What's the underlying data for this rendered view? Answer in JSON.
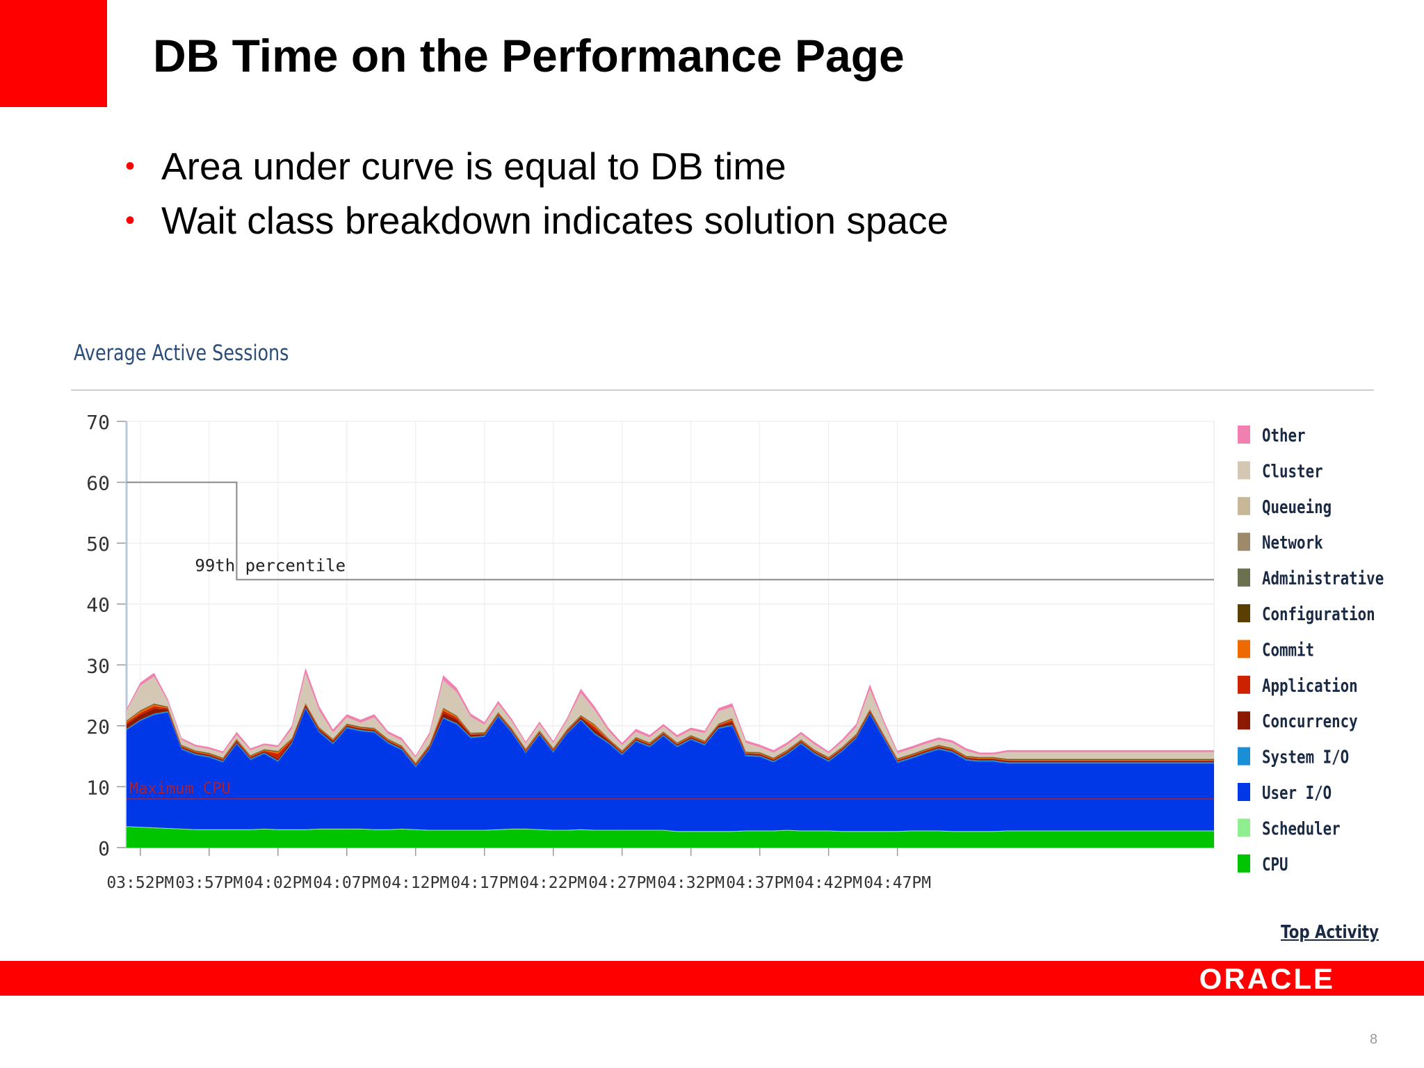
{
  "slide": {
    "title": "DB Time on the Performance Page",
    "bullets": [
      "Area under curve is equal to DB time",
      "Wait class breakdown indicates solution space"
    ],
    "bullet_marker": "•",
    "page_number": "8",
    "logo_text": "ORACLE",
    "brand_color": "#ff0000"
  },
  "chart_data": {
    "type": "area",
    "title": "Average Active Sessions",
    "xlabel": "",
    "ylabel": "",
    "ylim": [
      0,
      70
    ],
    "yticks": [
      0,
      10,
      20,
      30,
      40,
      50,
      60,
      70
    ],
    "xtick_labels": [
      "03:52PM",
      "03:57PM",
      "04:02PM",
      "04:07PM",
      "04:12PM",
      "04:17PM",
      "04:22PM",
      "04:27PM",
      "04:32PM",
      "04:37PM",
      "04:42PM",
      "04:47PM"
    ],
    "x_minutes_start": -1,
    "x_minutes_step": 1,
    "grid": true,
    "legend_position": "right",
    "stacked": true,
    "series": [
      {
        "name": "CPU",
        "color": "#00c400",
        "values": [
          3.4,
          3.3,
          3.2,
          3.1,
          3.0,
          2.9,
          2.9,
          2.9,
          2.9,
          2.9,
          3.0,
          2.9,
          2.9,
          2.9,
          3.0,
          3.0,
          3.0,
          3.0,
          2.9,
          2.9,
          3.0,
          2.9,
          2.8,
          2.8,
          2.8,
          2.8,
          2.8,
          2.9,
          3.0,
          3.0,
          2.9,
          2.8,
          2.8,
          2.9,
          2.8,
          2.8,
          2.8,
          2.8,
          2.8,
          2.8,
          2.6,
          2.6,
          2.6,
          2.6,
          2.6,
          2.7,
          2.7,
          2.7,
          2.8,
          2.7,
          2.7,
          2.7,
          2.6,
          2.6,
          2.6,
          2.6,
          2.6,
          2.7,
          2.7,
          2.7,
          2.6,
          2.6,
          2.6,
          2.6,
          2.7,
          2.7,
          2.7,
          2.7,
          2.7,
          2.7,
          2.7,
          2.7,
          2.7,
          2.7,
          2.7,
          2.7,
          2.7,
          2.7,
          2.7,
          2.7
        ]
      },
      {
        "name": "Scheduler",
        "color": "#90ee90",
        "values": [
          0.1,
          0.1,
          0.1,
          0.1,
          0.1,
          0.1,
          0.1,
          0.1,
          0.1,
          0.1,
          0.1,
          0.1,
          0.1,
          0.1,
          0.1,
          0.1,
          0.1,
          0.1,
          0.1,
          0.1,
          0.1,
          0.1,
          0.1,
          0.1,
          0.1,
          0.1,
          0.1,
          0.1,
          0.1,
          0.1,
          0.1,
          0.1,
          0.1,
          0.1,
          0.1,
          0.1,
          0.1,
          0.1,
          0.1,
          0.1,
          0.1,
          0.1,
          0.1,
          0.1,
          0.1,
          0.1,
          0.1,
          0.1,
          0.1,
          0.1,
          0.1,
          0.1,
          0.1,
          0.1,
          0.1,
          0.1,
          0.1,
          0.1,
          0.1,
          0.1,
          0.1,
          0.1,
          0.1,
          0.1,
          0.1,
          0.1,
          0.1,
          0.1,
          0.1,
          0.1,
          0.1,
          0.1,
          0.1,
          0.1,
          0.1,
          0.1,
          0.1,
          0.1,
          0.1,
          0.1
        ]
      },
      {
        "name": "User I/O",
        "color": "#0038e8",
        "values": [
          15.8,
          17.4,
          18.5,
          19.0,
          13.0,
          12.2,
          11.8,
          11.0,
          14.0,
          11.4,
          12.3,
          11.1,
          14.0,
          19.8,
          15.8,
          13.9,
          16.5,
          16.0,
          15.9,
          14.1,
          12.9,
          10.2,
          13.2,
          18.3,
          17.3,
          15.1,
          15.3,
          18.5,
          15.7,
          12.4,
          15.5,
          12.7,
          15.8,
          17.9,
          15.7,
          14.2,
          12.3,
          14.5,
          13.6,
          15.4,
          13.8,
          15.0,
          14.1,
          16.8,
          17.3,
          12.2,
          12.1,
          11.2,
          12.4,
          14.2,
          12.5,
          11.3,
          13.1,
          15.2,
          19.2,
          15.2,
          11.2,
          11.8,
          12.6,
          13.3,
          12.9,
          11.6,
          11.4,
          11.4,
          11.0,
          11.0,
          11.0,
          11.0,
          11.0,
          11.0,
          11.0,
          11.0,
          11.0,
          11.0,
          11.0,
          11.0,
          11.0,
          11.0,
          11.0,
          11.0
        ]
      },
      {
        "name": "System I/O",
        "color": "#1a8fd6",
        "values": [
          0.2,
          0.2,
          0.2,
          0.2,
          0.2,
          0.2,
          0.2,
          0.2,
          0.2,
          0.2,
          0.2,
          0.2,
          0.2,
          0.2,
          0.2,
          0.2,
          0.2,
          0.2,
          0.2,
          0.2,
          0.2,
          0.2,
          0.2,
          0.2,
          0.2,
          0.2,
          0.2,
          0.2,
          0.2,
          0.2,
          0.2,
          0.2,
          0.2,
          0.2,
          0.2,
          0.2,
          0.2,
          0.2,
          0.2,
          0.2,
          0.2,
          0.2,
          0.2,
          0.2,
          0.2,
          0.2,
          0.2,
          0.2,
          0.2,
          0.2,
          0.2,
          0.2,
          0.2,
          0.2,
          0.2,
          0.2,
          0.2,
          0.2,
          0.2,
          0.2,
          0.2,
          0.2,
          0.2,
          0.2,
          0.2,
          0.2,
          0.2,
          0.2,
          0.2,
          0.2,
          0.2,
          0.2,
          0.2,
          0.2,
          0.2,
          0.2,
          0.2,
          0.2,
          0.2,
          0.2
        ]
      },
      {
        "name": "Concurrency",
        "color": "#8b1a00",
        "values": [
          0.7,
          0.8,
          0.8,
          0.3,
          0.2,
          0.2,
          0.2,
          0.2,
          0.3,
          0.2,
          0.2,
          0.3,
          0.4,
          0.4,
          0.3,
          0.3,
          0.2,
          0.2,
          0.2,
          0.2,
          0.2,
          0.2,
          0.3,
          0.7,
          0.6,
          0.3,
          0.2,
          0.2,
          0.2,
          0.2,
          0.2,
          0.2,
          0.2,
          0.3,
          0.6,
          0.3,
          0.2,
          0.2,
          0.2,
          0.2,
          0.2,
          0.2,
          0.2,
          0.3,
          0.4,
          0.2,
          0.2,
          0.2,
          0.2,
          0.2,
          0.2,
          0.2,
          0.2,
          0.2,
          0.3,
          0.2,
          0.2,
          0.2,
          0.2,
          0.2,
          0.2,
          0.2,
          0.2,
          0.2,
          0.2,
          0.2,
          0.2,
          0.2,
          0.2,
          0.2,
          0.2,
          0.2,
          0.2,
          0.2,
          0.2,
          0.2,
          0.2,
          0.2,
          0.2,
          0.2
        ]
      },
      {
        "name": "Application",
        "color": "#cc2200",
        "values": [
          0.3,
          0.3,
          0.4,
          0.2,
          0.1,
          0.1,
          0.1,
          0.1,
          0.1,
          0.1,
          0.1,
          0.8,
          0.1,
          0.1,
          0.1,
          0.1,
          0.1,
          0.1,
          0.1,
          0.1,
          0.1,
          0.1,
          0.1,
          0.4,
          0.3,
          0.1,
          0.1,
          0.1,
          0.1,
          0.1,
          0.1,
          0.1,
          0.1,
          0.1,
          0.4,
          0.1,
          0.1,
          0.1,
          0.1,
          0.1,
          0.1,
          0.1,
          0.1,
          0.1,
          0.3,
          0.1,
          0.1,
          0.1,
          0.1,
          0.1,
          0.1,
          0.1,
          0.1,
          0.1,
          0.1,
          0.1,
          0.1,
          0.1,
          0.1,
          0.1,
          0.1,
          0.1,
          0.1,
          0.1,
          0.1,
          0.1,
          0.1,
          0.1,
          0.1,
          0.1,
          0.1,
          0.1,
          0.1,
          0.1,
          0.1,
          0.1,
          0.1,
          0.1,
          0.1,
          0.1
        ]
      },
      {
        "name": "Commit",
        "color": "#ee6a00",
        "values": [
          0.2,
          0.3,
          0.3,
          0.1,
          0.1,
          0.1,
          0.1,
          0.1,
          0.1,
          0.1,
          0.1,
          0.3,
          0.1,
          0.1,
          0.1,
          0.1,
          0.1,
          0.1,
          0.1,
          0.1,
          0.1,
          0.1,
          0.1,
          0.3,
          0.2,
          0.1,
          0.1,
          0.1,
          0.1,
          0.1,
          0.1,
          0.1,
          0.1,
          0.1,
          0.3,
          0.1,
          0.1,
          0.1,
          0.1,
          0.1,
          0.1,
          0.1,
          0.1,
          0.1,
          0.2,
          0.1,
          0.1,
          0.1,
          0.1,
          0.1,
          0.1,
          0.1,
          0.1,
          0.1,
          0.1,
          0.1,
          0.1,
          0.1,
          0.1,
          0.1,
          0.1,
          0.1,
          0.1,
          0.1,
          0.1,
          0.1,
          0.1,
          0.1,
          0.1,
          0.1,
          0.1,
          0.1,
          0.1,
          0.1,
          0.1,
          0.1,
          0.1,
          0.1,
          0.1,
          0.1
        ]
      },
      {
        "name": "Configuration",
        "color": "#5a4000",
        "values": [
          0.1,
          0.1,
          0.1,
          0.1,
          0.1,
          0.1,
          0.1,
          0.1,
          0.1,
          0.1,
          0.1,
          0.1,
          0.1,
          0.1,
          0.1,
          0.1,
          0.1,
          0.1,
          0.1,
          0.1,
          0.1,
          0.1,
          0.1,
          0.1,
          0.1,
          0.1,
          0.1,
          0.1,
          0.1,
          0.1,
          0.1,
          0.1,
          0.1,
          0.1,
          0.1,
          0.1,
          0.1,
          0.1,
          0.1,
          0.1,
          0.1,
          0.1,
          0.1,
          0.1,
          0.1,
          0.1,
          0.1,
          0.1,
          0.1,
          0.1,
          0.1,
          0.1,
          0.1,
          0.1,
          0.1,
          0.1,
          0.1,
          0.1,
          0.1,
          0.1,
          0.1,
          0.1,
          0.1,
          0.1,
          0.1,
          0.1,
          0.1,
          0.1,
          0.1,
          0.1,
          0.1,
          0.1,
          0.1,
          0.1,
          0.1,
          0.1,
          0.1,
          0.1,
          0.1,
          0.1
        ]
      },
      {
        "name": "Administrative",
        "color": "#6b7050",
        "values": [
          0,
          0,
          0,
          0,
          0,
          0,
          0,
          0,
          0,
          0,
          0,
          0,
          0,
          0,
          0,
          0,
          0,
          0,
          0,
          0,
          0,
          0,
          0,
          0,
          0,
          0,
          0,
          0,
          0,
          0,
          0,
          0,
          0,
          0,
          0,
          0,
          0,
          0,
          0,
          0,
          0,
          0,
          0,
          0,
          0,
          0,
          0,
          0,
          0,
          0,
          0,
          0,
          0,
          0,
          0,
          0,
          0,
          0,
          0,
          0,
          0,
          0,
          0,
          0,
          0,
          0,
          0,
          0,
          0,
          0,
          0,
          0,
          0,
          0,
          0,
          0,
          0,
          0,
          0,
          0
        ]
      },
      {
        "name": "Network",
        "color": "#9c8a6a",
        "values": [
          0.1,
          0.1,
          0.1,
          0.1,
          0.1,
          0.1,
          0.1,
          0.1,
          0.1,
          0.1,
          0.1,
          0.1,
          0.1,
          0.1,
          0.1,
          0.1,
          0.1,
          0.1,
          0.1,
          0.1,
          0.1,
          0.1,
          0.1,
          0.1,
          0.1,
          0.1,
          0.1,
          0.1,
          0.1,
          0.1,
          0.1,
          0.1,
          0.1,
          0.1,
          0.1,
          0.1,
          0.1,
          0.1,
          0.1,
          0.1,
          0.1,
          0.1,
          0.1,
          0.1,
          0.1,
          0.1,
          0.1,
          0.1,
          0.1,
          0.1,
          0.1,
          0.1,
          0.1,
          0.1,
          0.1,
          0.1,
          0.1,
          0.1,
          0.1,
          0.1,
          0.1,
          0.1,
          0.1,
          0.1,
          0.1,
          0.1,
          0.1,
          0.1,
          0.1,
          0.1,
          0.1,
          0.1,
          0.1,
          0.1,
          0.1,
          0.1,
          0.1,
          0.1,
          0.1,
          0.1
        ]
      },
      {
        "name": "Queueing",
        "color": "#c8b89a",
        "values": [
          0,
          0,
          0,
          0,
          0,
          0,
          0,
          0,
          0,
          0,
          0,
          0,
          0,
          0,
          0,
          0,
          0,
          0,
          0,
          0,
          0,
          0,
          0,
          0,
          0,
          0,
          0,
          0,
          0,
          0,
          0,
          0,
          0,
          0,
          0,
          0,
          0,
          0,
          0,
          0,
          0,
          0,
          0,
          0,
          0,
          0,
          0,
          0,
          0,
          0,
          0,
          0,
          0,
          0,
          0,
          0,
          0,
          0,
          0,
          0,
          0,
          0,
          0,
          0,
          0,
          0,
          0,
          0,
          0,
          0,
          0,
          0,
          0,
          0,
          0,
          0,
          0,
          0,
          0,
          0
        ]
      },
      {
        "name": "Cluster",
        "color": "#d4c8b4",
        "values": [
          1.6,
          4.0,
          4.4,
          0.8,
          0.8,
          0.6,
          0.6,
          0.7,
          0.6,
          0.8,
          0.6,
          0.6,
          1.5,
          4.8,
          2.7,
          1.0,
          1.0,
          0.6,
          1.7,
          0.8,
          0.8,
          0.8,
          1.5,
          4.5,
          3.8,
          2.6,
          1.2,
          1.3,
          1.1,
          0.8,
          1.0,
          0.8,
          1.4,
          3.6,
          2.3,
          1.2,
          0.8,
          0.8,
          0.8,
          0.8,
          0.8,
          0.8,
          1.2,
          2.0,
          1.8,
          1.4,
          0.8,
          0.8,
          0.8,
          0.8,
          0.8,
          0.6,
          0.8,
          1.1,
          3.2,
          1.8,
          0.8,
          0.8,
          0.8,
          0.8,
          0.8,
          0.8,
          0.4,
          0.4,
          1.1,
          1.1,
          1.1,
          1.1,
          1.1,
          1.1,
          1.1,
          1.1,
          1.1,
          1.1,
          1.1,
          1.1,
          1.1,
          1.1,
          1.1,
          1.1
        ]
      },
      {
        "name": "Other",
        "color": "#f080b0",
        "values": [
          0.3,
          0.5,
          0.6,
          0.4,
          0.3,
          0.3,
          0.3,
          0.3,
          0.5,
          0.3,
          0.3,
          0.3,
          0.5,
          0.9,
          0.7,
          0.5,
          0.5,
          0.5,
          0.5,
          0.4,
          0.4,
          0.3,
          0.4,
          0.8,
          0.7,
          0.5,
          0.4,
          0.5,
          0.4,
          0.3,
          0.4,
          0.3,
          0.4,
          0.7,
          0.6,
          0.5,
          0.4,
          0.5,
          0.4,
          0.4,
          0.4,
          0.4,
          0.4,
          0.5,
          0.6,
          0.4,
          0.4,
          0.4,
          0.4,
          0.4,
          0.4,
          0.3,
          0.4,
          0.5,
          0.8,
          0.5,
          0.4,
          0.4,
          0.4,
          0.4,
          0.4,
          0.4,
          0.3,
          0.3,
          0.3,
          0.3,
          0.3,
          0.3,
          0.3,
          0.3,
          0.3,
          0.3,
          0.3,
          0.3,
          0.3,
          0.3,
          0.3,
          0.3,
          0.3,
          0.3
        ]
      }
    ],
    "legend_order": [
      "Other",
      "Cluster",
      "Queueing",
      "Network",
      "Administrative",
      "Configuration",
      "Commit",
      "Application",
      "Concurrency",
      "System I/O",
      "User I/O",
      "Scheduler",
      "CPU"
    ],
    "reference_lines": [
      {
        "label": "99th percentile",
        "color": "#888888",
        "segments": [
          [
            60,
            -1,
            7
          ],
          [
            44,
            7,
            78
          ]
        ]
      },
      {
        "label": "Maximum CPU",
        "color": "#b02030",
        "value": 8
      }
    ],
    "link_label": "Top Activity"
  }
}
